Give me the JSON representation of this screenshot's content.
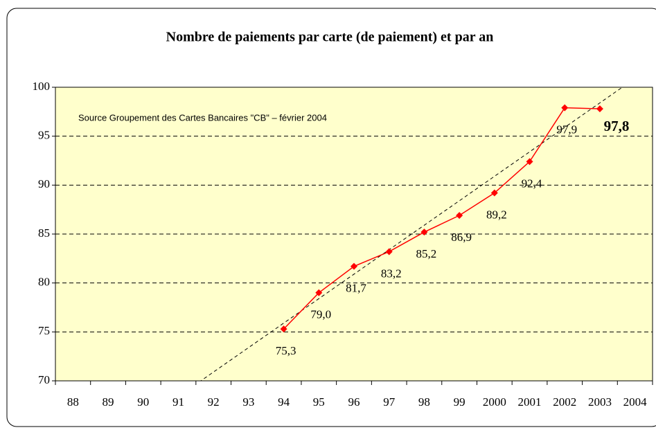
{
  "chart_data": {
    "type": "line",
    "title": "Nombre de paiements par carte (de paiement) et par an",
    "annotation": "Source Groupement des Cartes Bancaires \"CB\" – février 2004",
    "categories": [
      "88",
      "89",
      "90",
      "91",
      "92",
      "93",
      "94",
      "95",
      "96",
      "97",
      "98",
      "99",
      "2000",
      "2001",
      "2002",
      "2003",
      "2004"
    ],
    "series": [
      {
        "color": "#ff0000",
        "values": [
          null,
          null,
          null,
          null,
          null,
          null,
          75.3,
          79.0,
          81.7,
          83.2,
          85.2,
          86.9,
          89.2,
          92.4,
          97.9,
          97.8,
          null
        ],
        "value_labels": [
          null,
          null,
          null,
          null,
          null,
          null,
          "75,3",
          "79,0",
          "81,7",
          "83,2",
          "85,2",
          "86,9",
          "89,2",
          "92,4",
          "97,9",
          "97,8",
          null
        ]
      }
    ],
    "trendline": {
      "color": "#000000",
      "values": [
        null,
        null,
        null,
        68.4,
        70.9,
        73.4,
        75.9,
        78.4,
        80.9,
        83.4,
        85.9,
        88.4,
        90.9,
        93.4,
        95.9,
        98.4,
        100.9
      ]
    },
    "ylim": [
      70,
      100
    ],
    "yticks": [
      70,
      75,
      80,
      85,
      90,
      95,
      100
    ],
    "grid": true,
    "plot_background": "#ffffcc"
  }
}
